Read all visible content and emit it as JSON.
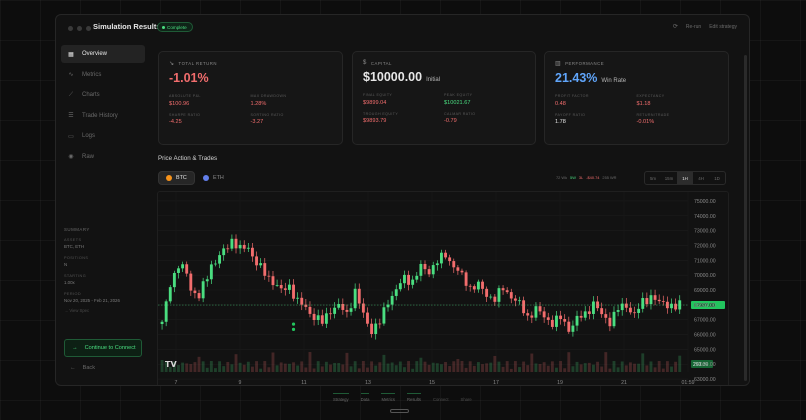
{
  "window": {
    "title": "Simulation Results",
    "badge": "Complete",
    "actions": [
      "Re-run",
      "Edit strategy"
    ]
  },
  "sidebar": {
    "items": [
      {
        "label": "Overview",
        "icon": "grid-icon",
        "active": true
      },
      {
        "label": "Metrics",
        "icon": "trend-icon",
        "active": false
      },
      {
        "label": "Charts",
        "icon": "chart-icon",
        "active": false
      },
      {
        "label": "Trade History",
        "icon": "list-icon",
        "active": false
      },
      {
        "label": "Logs",
        "icon": "file-icon",
        "active": false
      },
      {
        "label": "Raw",
        "icon": "eye-icon",
        "active": false
      }
    ],
    "summary": {
      "title": "SUMMARY",
      "assets_label": "ASSETS",
      "assets_value": "BTC, ETH",
      "positions_label": "POSITIONS",
      "positions_value": "N",
      "starting_label": "STARTING",
      "starting_value": "1.00x",
      "period_label": "PERIOD",
      "period_value": "Nov 20, 2025 - Feb 21, 2026",
      "view_spec": "View Spec"
    },
    "connect_label": "Continue to Connect",
    "back_label": "Back"
  },
  "cards": {
    "total_return": {
      "header": "TOTAL RETURN",
      "value": "-1.01%",
      "stats": [
        {
          "label": "ABSOLUTE P&L",
          "value": "$100.96",
          "color": "red"
        },
        {
          "label": "MAX DRAWDOWN",
          "value": "1.28%",
          "color": "red"
        },
        {
          "label": "SHARPE RATIO",
          "value": "-4.25",
          "color": "red"
        },
        {
          "label": "SORTINO RATIO",
          "value": "-3.27",
          "color": "red"
        }
      ]
    },
    "capital": {
      "header": "CAPITAL",
      "value": "$10000.00",
      "sub": "Initial",
      "stats": [
        {
          "label": "FINAL EQUITY",
          "value": "$9899.04",
          "color": "red"
        },
        {
          "label": "PEAK EQUITY",
          "value": "$10021.67",
          "color": "green"
        },
        {
          "label": "TROUGH EQUITY",
          "value": "$9893.79",
          "color": "red"
        },
        {
          "label": "CALMAR RATIO",
          "value": "-0.79",
          "color": "red"
        }
      ]
    },
    "performance": {
      "header": "PERFORMANCE",
      "value": "21.43%",
      "sub": "Win Rate",
      "stats": [
        {
          "label": "PROFIT FACTOR",
          "value": "0.48",
          "color": "red"
        },
        {
          "label": "EXPECTANCY",
          "value": "$1.18",
          "color": "red"
        },
        {
          "label": "PAYOFF RATIO",
          "value": "1.78",
          "color": "white"
        },
        {
          "label": "RETURN/TRADE",
          "value": "-0.01%",
          "color": "red"
        }
      ]
    }
  },
  "price_action": {
    "title": "Price Action & Trades",
    "symbols": [
      {
        "label": "BTC",
        "color": "#f7931a",
        "active": true
      },
      {
        "label": "ETH",
        "color": "#627eea",
        "active": false
      }
    ],
    "trade_legend": [
      "72 Wk",
      "5W",
      "3L",
      "-$40.74",
      "255 WR"
    ],
    "timeframes": [
      "5m",
      "15m",
      "1H",
      "4H",
      "1D"
    ],
    "active_timeframe": "1H"
  },
  "chart_data": {
    "type": "candlestick",
    "y_ticks": [
      "75000.00",
      "74000.00",
      "73000.00",
      "72000.00",
      "71000.00",
      "70000.00",
      "69000.00",
      "68000.00",
      "67000.00",
      "66000.00",
      "65000.00",
      "64000.00",
      "63000.00"
    ],
    "x_ticks": [
      "7",
      "9",
      "11",
      "13",
      "15",
      "17",
      "19",
      "21",
      "01:59"
    ],
    "ylim": [
      62400,
      75600
    ],
    "last_price_label": "67987.00",
    "last_price": 67987,
    "volume_label": "260.39",
    "close_path": [
      [
        0,
        66700
      ],
      [
        2,
        69500
      ],
      [
        4,
        70600
      ],
      [
        6,
        70200
      ],
      [
        7,
        69100
      ],
      [
        9,
        68500
      ],
      [
        12,
        70700
      ],
      [
        14,
        71200
      ],
      [
        17,
        72400
      ],
      [
        19,
        71700
      ],
      [
        21,
        71900
      ],
      [
        23,
        70800
      ],
      [
        25,
        70100
      ],
      [
        27,
        69600
      ],
      [
        29,
        68900
      ],
      [
        31,
        69300
      ],
      [
        33,
        68200
      ],
      [
        35,
        67800
      ],
      [
        37,
        67200
      ],
      [
        39,
        66800
      ],
      [
        41,
        67700
      ],
      [
        43,
        67900
      ],
      [
        45,
        67400
      ],
      [
        47,
        68900
      ],
      [
        49,
        67300
      ],
      [
        51,
        66300
      ],
      [
        53,
        66800
      ],
      [
        55,
        68300
      ],
      [
        57,
        69000
      ],
      [
        59,
        69800
      ],
      [
        61,
        69600
      ],
      [
        63,
        70500
      ],
      [
        65,
        70300
      ],
      [
        67,
        70900
      ],
      [
        69,
        71400
      ],
      [
        71,
        70600
      ],
      [
        73,
        69900
      ],
      [
        75,
        69200
      ],
      [
        77,
        69300
      ],
      [
        79,
        68700
      ],
      [
        81,
        68400
      ],
      [
        83,
        69100
      ],
      [
        85,
        68600
      ],
      [
        87,
        68000
      ],
      [
        89,
        67200
      ],
      [
        91,
        67700
      ],
      [
        93,
        67200
      ],
      [
        95,
        66800
      ],
      [
        97,
        67100
      ],
      [
        99,
        66400
      ],
      [
        101,
        67000
      ],
      [
        103,
        67400
      ],
      [
        105,
        68100
      ],
      [
        107,
        67300
      ],
      [
        109,
        66900
      ],
      [
        111,
        67700
      ],
      [
        113,
        68000
      ],
      [
        115,
        67300
      ],
      [
        117,
        68200
      ],
      [
        119,
        68600
      ],
      [
        121,
        68100
      ],
      [
        123,
        68100
      ],
      [
        125,
        67800
      ],
      [
        126,
        67987
      ]
    ],
    "trade_markers": [
      [
        32,
        66700
      ],
      [
        32,
        66350
      ]
    ]
  },
  "bottom_nav": [
    "Strategy",
    "Data",
    "Metrics",
    "Results",
    "Connect",
    "Share"
  ],
  "bottom_nav_active": [
    0,
    1,
    2,
    3
  ]
}
